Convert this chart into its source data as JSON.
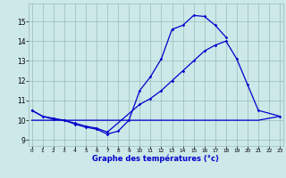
{
  "line1_x": [
    0,
    1,
    2,
    3,
    4,
    5,
    6,
    7,
    8,
    9,
    10,
    11,
    12,
    13,
    14,
    15,
    16,
    17,
    18
  ],
  "line1_y": [
    10.5,
    10.2,
    10.1,
    10.0,
    9.8,
    9.65,
    9.55,
    9.3,
    9.45,
    10.0,
    11.5,
    12.2,
    13.1,
    14.6,
    14.8,
    15.3,
    15.25,
    14.8,
    14.2
  ],
  "line2_x": [
    0,
    1,
    2,
    3,
    4,
    5,
    6,
    7,
    10,
    11,
    12,
    13,
    14,
    15,
    16,
    17,
    18,
    19,
    20,
    21,
    23
  ],
  "line2_y": [
    10.5,
    10.2,
    10.05,
    10.0,
    9.85,
    9.7,
    9.6,
    9.4,
    10.8,
    11.1,
    11.5,
    12.0,
    12.5,
    13.0,
    13.5,
    13.8,
    14.0,
    13.1,
    11.8,
    10.5,
    10.2
  ],
  "line3_x": [
    0,
    9,
    10,
    20,
    21,
    23
  ],
  "line3_y": [
    10.0,
    10.0,
    10.0,
    10.0,
    10.0,
    10.2
  ],
  "background_color": "#cce8e8",
  "line_color": "#0000cc",
  "grid_color": "#99bbbb",
  "xlabel": "Graphe des températures (°c)",
  "ylim": [
    8.7,
    15.9
  ],
  "xlim": [
    -0.3,
    23.3
  ],
  "yticks": [
    9,
    10,
    11,
    12,
    13,
    14,
    15
  ],
  "xticks": [
    0,
    1,
    2,
    3,
    4,
    5,
    6,
    7,
    8,
    9,
    10,
    11,
    12,
    13,
    14,
    15,
    16,
    17,
    18,
    19,
    20,
    21,
    22,
    23
  ]
}
